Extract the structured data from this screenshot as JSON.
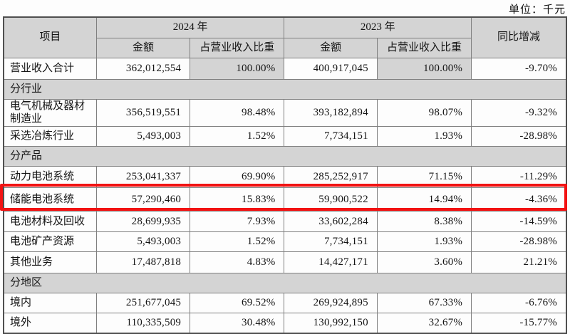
{
  "unit_label": "单位：千元",
  "colors": {
    "header_bg": "#d4d4d4",
    "highlight_border": "#f21212",
    "grid_line": "#7f7f7f",
    "outer_border": "#4f4f4f"
  },
  "table": {
    "header": {
      "item": "项目",
      "year_2024": "2024 年",
      "year_2023": "2023 年",
      "yoy": "同比增减",
      "amount": "金额",
      "ratio": "占营业收入比重"
    },
    "rows": [
      {
        "type": "data",
        "label": "营业收入合计",
        "amount_2024": "362,012,554",
        "ratio_2024": "100.00%",
        "amount_2023": "400,917,045",
        "ratio_2023": "100.00%",
        "yoy": "-9.70%",
        "shaded_ratio": true
      },
      {
        "type": "section",
        "label": "分行业"
      },
      {
        "type": "data",
        "label": "电气机械及器材制造业",
        "amount_2024": "356,519,551",
        "ratio_2024": "98.48%",
        "amount_2023": "393,182,894",
        "ratio_2023": "98.07%",
        "yoy": "-9.32%"
      },
      {
        "type": "data",
        "label": "采选冶炼行业",
        "amount_2024": "5,493,003",
        "ratio_2024": "1.52%",
        "amount_2023": "7,734,151",
        "ratio_2023": "1.93%",
        "yoy": "-28.98%"
      },
      {
        "type": "section",
        "label": "分产品"
      },
      {
        "type": "data",
        "label": "动力电池系统",
        "amount_2024": "253,041,337",
        "ratio_2024": "69.90%",
        "amount_2023": "285,252,917",
        "ratio_2023": "71.15%",
        "yoy": "-11.29%"
      },
      {
        "type": "data",
        "label": "储能电池系统",
        "amount_2024": "57,290,460",
        "ratio_2024": "15.83%",
        "amount_2023": "59,900,522",
        "ratio_2023": "14.94%",
        "yoy": "-4.36%",
        "highlighted": true
      },
      {
        "type": "data",
        "label": "电池材料及回收",
        "amount_2024": "28,699,935",
        "ratio_2024": "7.93%",
        "amount_2023": "33,602,284",
        "ratio_2023": "8.38%",
        "yoy": "-14.59%"
      },
      {
        "type": "data",
        "label": "电池矿产资源",
        "amount_2024": "5,493,003",
        "ratio_2024": "1.52%",
        "amount_2023": "7,734,151",
        "ratio_2023": "1.93%",
        "yoy": "-28.98%"
      },
      {
        "type": "data",
        "label": "其他业务",
        "amount_2024": "17,487,818",
        "ratio_2024": "4.83%",
        "amount_2023": "14,427,171",
        "ratio_2023": "3.60%",
        "yoy": "21.21%"
      },
      {
        "type": "section",
        "label": "分地区"
      },
      {
        "type": "data",
        "label": "境内",
        "amount_2024": "251,677,045",
        "ratio_2024": "69.52%",
        "amount_2023": "269,924,895",
        "ratio_2023": "67.33%",
        "yoy": "-6.76%"
      },
      {
        "type": "data",
        "label": "境外",
        "amount_2024": "110,335,509",
        "ratio_2024": "30.48%",
        "amount_2023": "130,992,150",
        "ratio_2023": "32.67%",
        "yoy": "-15.77%"
      }
    ]
  }
}
